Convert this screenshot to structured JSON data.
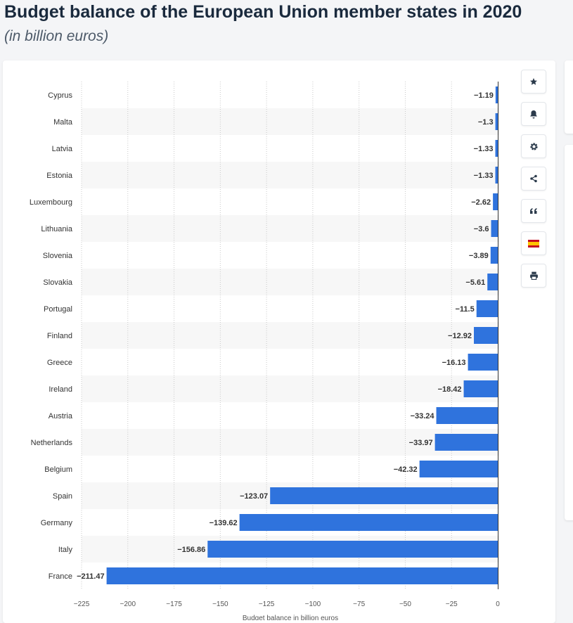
{
  "header": {
    "title": "Budget balance of the European Union member states in 2020",
    "subtitle": "(in billion euros)"
  },
  "toolbar": {
    "buttons": [
      {
        "name": "favorite-button",
        "icon": "star-icon"
      },
      {
        "name": "notification-button",
        "icon": "bell-icon"
      },
      {
        "name": "settings-button",
        "icon": "gear-icon"
      },
      {
        "name": "share-button",
        "icon": "share-icon"
      },
      {
        "name": "cite-button",
        "icon": "quote-icon"
      },
      {
        "name": "language-button",
        "icon": "spain-flag-icon"
      },
      {
        "name": "print-button",
        "icon": "printer-icon"
      }
    ]
  },
  "colors": {
    "bar": "#2f73dd",
    "stripe": "#f7f7f7",
    "text": "#333333",
    "grid": "#c9c9c9"
  },
  "chart_data": {
    "type": "bar",
    "orientation": "horizontal",
    "categories": [
      "Cyprus",
      "Malta",
      "Latvia",
      "Estonia",
      "Luxembourg",
      "Lithuania",
      "Slovenia",
      "Slovakia",
      "Portugal",
      "Finland",
      "Greece",
      "Ireland",
      "Austria",
      "Netherlands",
      "Belgium",
      "Spain",
      "Germany",
      "Italy",
      "France"
    ],
    "values": [
      -1.19,
      -1.3,
      -1.33,
      -1.33,
      -2.62,
      -3.6,
      -3.89,
      -5.61,
      -11.5,
      -12.92,
      -16.13,
      -18.42,
      -33.24,
      -33.97,
      -42.32,
      -123.07,
      -139.62,
      -156.86,
      -211.47
    ],
    "value_labels": [
      "−1.19",
      "−1.3",
      "−1.33",
      "−1.33",
      "−2.62",
      "−3.6",
      "−3.89",
      "−5.61",
      "−11.5",
      "−12.92",
      "−16.13",
      "−18.42",
      "−33.24",
      "−33.97",
      "−42.32",
      "−123.07",
      "−139.62",
      "−156.86",
      "−211.47"
    ],
    "xlabel": "Budget balance in billion euros",
    "xlim": [
      -225,
      0
    ],
    "xticks": [
      -225,
      -200,
      -175,
      -150,
      -125,
      -100,
      -75,
      -50,
      -25,
      0
    ],
    "xtick_labels": [
      "−225",
      "−200",
      "−175",
      "−150",
      "−125",
      "−100",
      "−75",
      "−50",
      "−25",
      "0"
    ],
    "grid": true
  }
}
